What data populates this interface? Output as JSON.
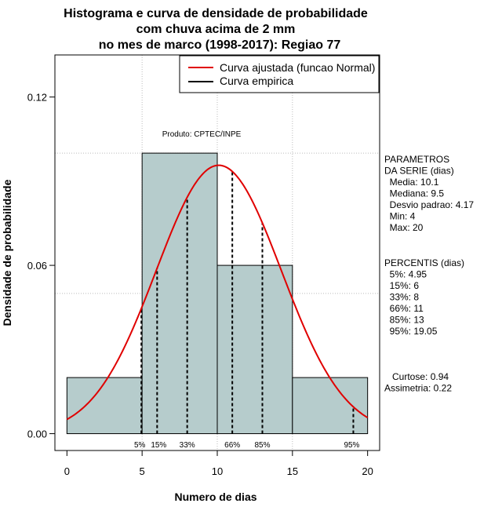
{
  "chart_data": {
    "type": "bar",
    "title_lines": [
      "Histograma e curva de densidade de probabilidade",
      "com chuva acima de 2 mm",
      "no mes de marco (1998-2017): Regiao 77"
    ],
    "xlabel": "Numero de dias",
    "ylabel": "Densidade de probabilidade",
    "xlim": [
      -0.8,
      20.8
    ],
    "ylim": [
      -0.006,
      0.135
    ],
    "x_ticks": [
      0,
      5,
      10,
      15,
      20
    ],
    "x_tick_labels": [
      "0",
      "5",
      "10",
      "15",
      "20"
    ],
    "y_ticks": [
      0.0,
      0.06,
      0.12
    ],
    "y_tick_labels": [
      "0.00",
      "0.06",
      "0.12"
    ],
    "grid_x": [
      5,
      10,
      15
    ],
    "grid_y": [
      0.05,
      0.1
    ],
    "bins": [
      {
        "from": 0,
        "to": 5,
        "density": 0.02
      },
      {
        "from": 5,
        "to": 10,
        "density": 0.1
      },
      {
        "from": 10,
        "to": 15,
        "density": 0.06
      },
      {
        "from": 15,
        "to": 20,
        "density": 0.02
      }
    ],
    "normal_curve": {
      "mean": 10.1,
      "sd": 4.17,
      "from": 0,
      "to": 20
    },
    "percentiles": [
      {
        "label": "5%",
        "x": 4.95
      },
      {
        "label": "15%",
        "x": 6
      },
      {
        "label": "33%",
        "x": 8
      },
      {
        "label": "66%",
        "x": 11
      },
      {
        "label": "85%",
        "x": 13
      },
      {
        "label": "95%",
        "x": 19.05
      }
    ],
    "legend": {
      "position": "top-right",
      "entries": [
        {
          "label": "Curva ajustada (funcao Normal)",
          "color": "#e00000"
        },
        {
          "label": "Curva empirica",
          "color": "#000000"
        }
      ]
    },
    "annotation": "Produto: CPTEC/INPE",
    "colors": {
      "bar_fill": "#b6cccc",
      "curve": "#e00000",
      "grid": "#bbbbbb"
    }
  },
  "side_panel": {
    "params_lines": [
      "PARAMETROS",
      "DA SERIE (dias)",
      "  Media: 10.1",
      "  Mediana: 9.5",
      "  Desvio padrao: 4.17",
      "  Min: 4",
      "  Max: 20"
    ],
    "percentis_lines": [
      "PERCENTIS (dias)",
      "  5%: 4.95",
      "  15%: 6",
      "  33%: 8",
      "  66%: 11",
      "  85%: 13",
      "  95%: 19.05"
    ],
    "shape_lines": [
      "   Curtose: 0.94",
      "Assimetria: 0.22"
    ]
  }
}
